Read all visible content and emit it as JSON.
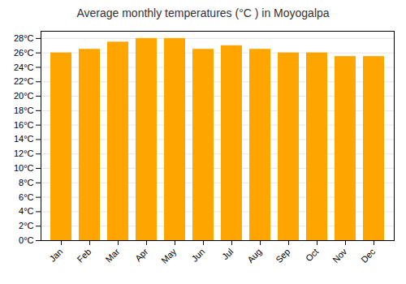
{
  "chart_data": {
    "type": "bar",
    "title": "Average monthly temperatures (°C ) in Moyogalpa",
    "categories": [
      "Jan",
      "Feb",
      "Mar",
      "Apr",
      "May",
      "Jun",
      "Jul",
      "Aug",
      "Sep",
      "Oct",
      "Nov",
      "Dec"
    ],
    "values": [
      26.0,
      26.5,
      27.5,
      28.0,
      28.0,
      26.5,
      27.0,
      26.5,
      26.0,
      26.0,
      25.5,
      25.5
    ],
    "color": "#FFA500",
    "ylim": [
      0,
      29
    ],
    "yticks": [
      {
        "value": 0,
        "label": "0°C"
      },
      {
        "value": 2,
        "label": "2°C"
      },
      {
        "value": 4,
        "label": "4°C"
      },
      {
        "value": 6,
        "label": "6°C"
      },
      {
        "value": 8,
        "label": "8°C"
      },
      {
        "value": 10,
        "label": "10°C"
      },
      {
        "value": 12,
        "label": "12°C"
      },
      {
        "value": 14,
        "label": "14°C"
      },
      {
        "value": 16,
        "label": "16°C"
      },
      {
        "value": 18,
        "label": "18°C"
      },
      {
        "value": 20,
        "label": "20°C"
      },
      {
        "value": 22,
        "label": "22°C"
      },
      {
        "value": 24,
        "label": "24°C"
      },
      {
        "value": 26,
        "label": "26°C"
      },
      {
        "value": 28,
        "label": "28°C"
      }
    ],
    "grid": true
  }
}
